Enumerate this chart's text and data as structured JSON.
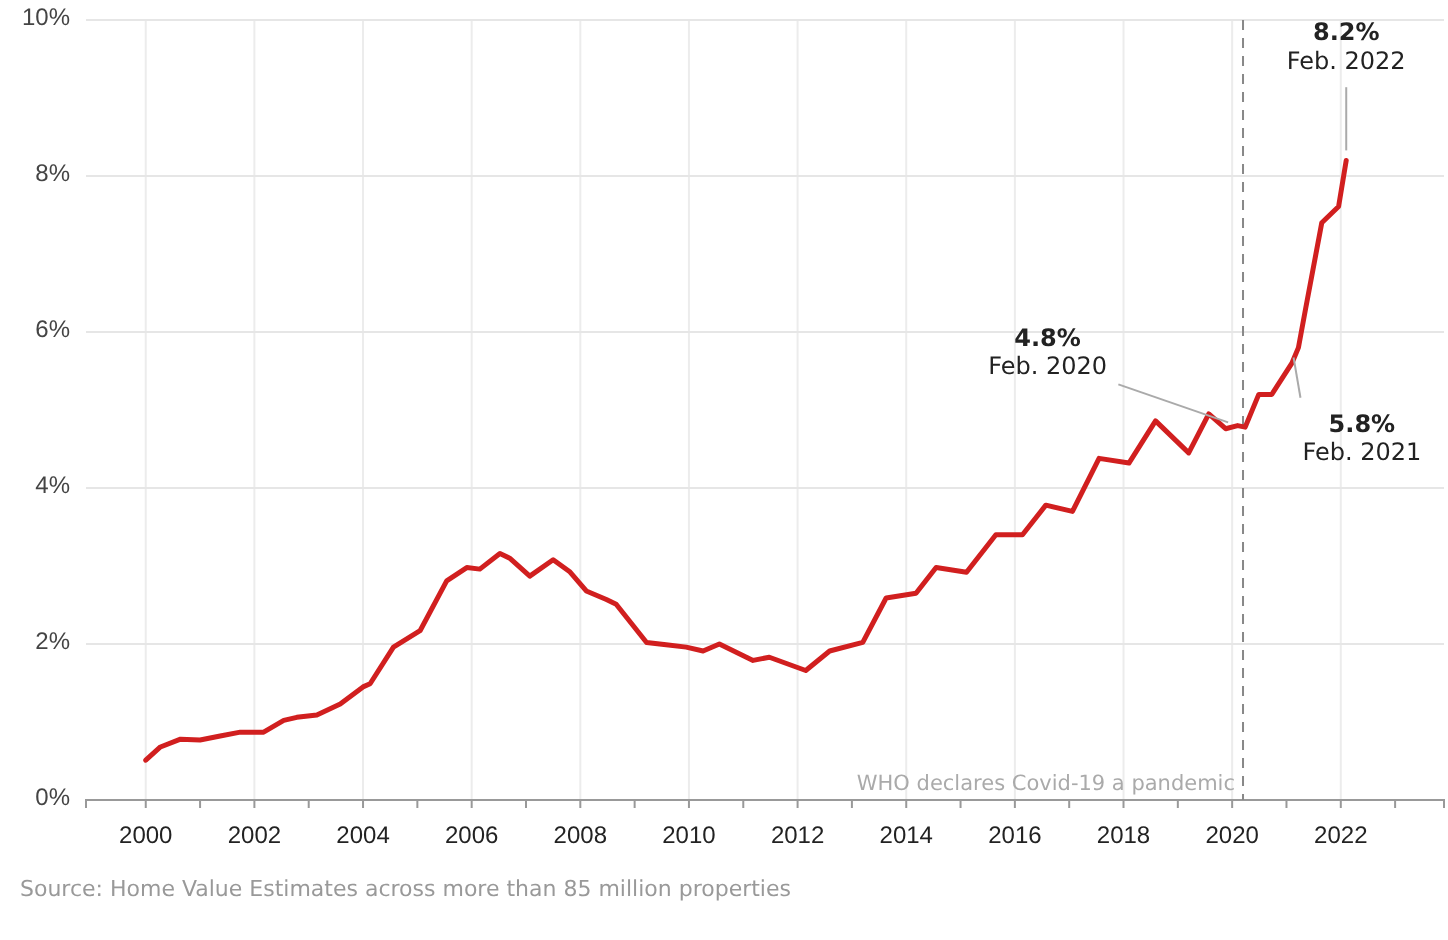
{
  "chart_data": {
    "type": "line",
    "x": [
      2000.0,
      2000.27,
      2000.64,
      2001.0,
      2001.37,
      2001.74,
      2002.17,
      2002.54,
      2002.78,
      2003.15,
      2003.58,
      2004.0,
      2004.13,
      2004.56,
      2005.05,
      2005.54,
      2005.91,
      2006.15,
      2006.52,
      2006.7,
      2007.07,
      2007.5,
      2007.8,
      2008.11,
      2008.48,
      2008.66,
      2009.22,
      2009.58,
      2009.95,
      2010.26,
      2010.56,
      2011.18,
      2011.48,
      2012.15,
      2012.59,
      2013.2,
      2013.63,
      2014.18,
      2014.55,
      2015.11,
      2015.65,
      2016.14,
      2016.57,
      2017.06,
      2017.55,
      2018.1,
      2018.59,
      2019.2,
      2019.57,
      2019.88,
      2020.1,
      2020.24,
      2020.49,
      2020.73,
      2021.1,
      2021.22,
      2021.35,
      2021.65,
      2021.96,
      2022.1
    ],
    "series": [
      {
        "color": "#d11f1f",
        "values": [
          0.51,
          0.68,
          0.78,
          0.77,
          0.82,
          0.87,
          0.87,
          1.02,
          1.06,
          1.09,
          1.23,
          1.45,
          1.49,
          1.96,
          2.17,
          2.81,
          2.98,
          2.96,
          3.16,
          3.1,
          2.87,
          3.08,
          2.93,
          2.68,
          2.57,
          2.51,
          2.02,
          1.99,
          1.96,
          1.91,
          2.0,
          1.79,
          1.83,
          1.66,
          1.91,
          2.02,
          2.59,
          2.65,
          2.98,
          2.92,
          3.4,
          3.4,
          3.78,
          3.7,
          4.38,
          4.32,
          4.86,
          4.45,
          4.95,
          4.76,
          4.8,
          4.78,
          5.2,
          5.2,
          5.6,
          5.8,
          6.29,
          7.4,
          7.61,
          8.2
        ]
      }
    ],
    "xlim": [
      1998.9,
      2023.9
    ],
    "xticks": [
      2000,
      {
        "value": 2001,
        "label": null
      },
      2002,
      {
        "value": 2003,
        "label": null
      },
      2004,
      {
        "value": 2005,
        "label": null
      },
      2006,
      {
        "value": 2007,
        "label": null
      },
      2008,
      {
        "value": 2009,
        "label": null
      },
      2010,
      {
        "value": 2011,
        "label": null
      },
      2012,
      {
        "value": 2013,
        "label": null
      },
      2014,
      {
        "value": 2015,
        "label": null
      },
      2016,
      {
        "value": 2017,
        "label": null
      },
      2018,
      {
        "value": 2019,
        "label": null
      },
      2020,
      {
        "value": 2021,
        "label": null
      },
      2022,
      {
        "value": 2023,
        "label": null
      }
    ],
    "ylim": [
      0,
      10
    ],
    "yticks": [
      {
        "value": 0,
        "label": "0%"
      },
      {
        "value": 2,
        "label": "2%"
      },
      {
        "value": 4,
        "label": "4%"
      },
      {
        "value": 6,
        "label": "6%"
      },
      {
        "value": 8,
        "label": "8%"
      },
      {
        "value": 10,
        "label": "10%"
      }
    ],
    "grid": true,
    "ref_lines": [
      {
        "axis": "x",
        "value": 2020.2,
        "label": "WHO declares Covid-19 a pandemic",
        "color": "#888888",
        "line_style": "dashed"
      }
    ],
    "annotations": [
      {
        "text": "4.8%\nFeb. 2020",
        "x": 2020.1,
        "y": 4.8
      },
      {
        "text": "5.8%\nFeb. 2021",
        "x": 2021.1,
        "y": 5.8
      },
      {
        "text": "8.2%\nFeb. 2022",
        "x": 2022.1,
        "y": 8.2
      },
      "Source: Home Value Estimates across more than 85 million properties"
    ]
  }
}
